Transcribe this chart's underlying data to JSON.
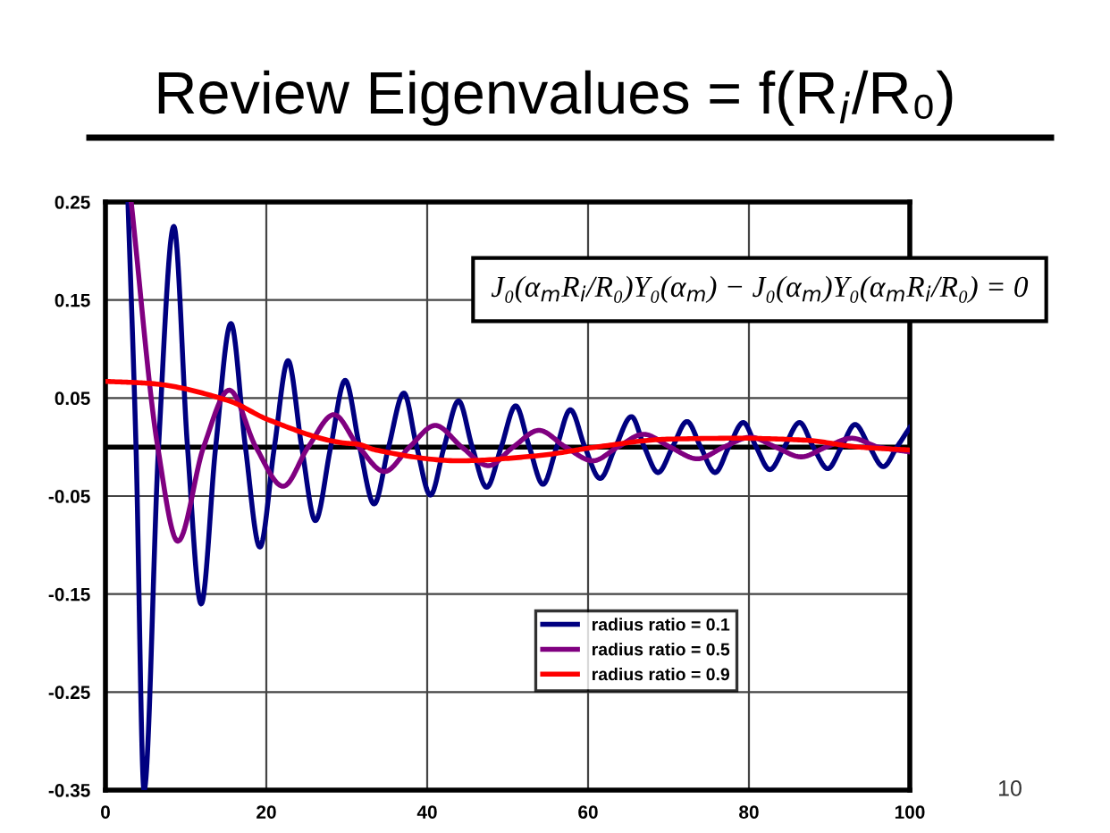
{
  "chart_data": {
    "type": "line",
    "title": "Review Eigenvalues = f(R$_{i}$/R₀)",
    "annotations": [
      "J₀(α$_{m}$R$_{i}$/R₀)Y₀(α$_{m}$) − J₀(α$_{m}$)Y₀(α$_{m}$R$_{i}$/R₀) = 0",
      "10"
    ],
    "series": [
      {
        "name": "radius ratio = 0.1",
        "color": "#000080",
        "x": [
          2.8,
          3.8,
          4.8,
          6.6,
          8.5,
          10.2,
          11.9,
          13.7,
          15.6,
          17.4,
          19.2,
          21.0,
          22.7,
          24.4,
          26.1,
          28.0,
          29.8,
          31.6,
          33.4,
          35.2,
          37.1,
          38.7,
          40.4,
          42.1,
          43.9,
          45.6,
          47.4,
          49.2,
          51.0,
          52.7,
          54.4,
          56.1,
          57.8,
          59.6,
          61.5,
          63.4,
          65.4,
          67.0,
          68.7,
          70.5,
          72.3,
          74.0,
          75.8,
          77.5,
          79.3,
          80.9,
          82.6,
          84.4,
          86.3,
          88.0,
          89.8,
          91.5,
          93.2,
          95.0,
          96.7,
          98.4,
          100
        ],
        "values": [
          0.25,
          0,
          -0.35,
          0,
          0.225,
          0,
          -0.16,
          0,
          0.126,
          0,
          -0.102,
          0,
          0.088,
          0,
          -0.075,
          0,
          0.068,
          0,
          -0.058,
          0,
          0.055,
          0,
          -0.049,
          0,
          0.047,
          0,
          -0.041,
          0,
          0.042,
          0,
          -0.038,
          0,
          0.038,
          0,
          -0.032,
          0,
          0.031,
          0,
          -0.026,
          0,
          0.026,
          0,
          -0.026,
          0,
          0.025,
          0,
          -0.023,
          0,
          0.025,
          0,
          -0.022,
          0,
          0.023,
          0,
          -0.02,
          0,
          0.02
        ]
      },
      {
        "name": "radius ratio = 0.5",
        "color": "#800080",
        "x": [
          3.2,
          6.5,
          9.0,
          12.2,
          15.4,
          18.7,
          22.1,
          25.2,
          28.4,
          31.5,
          34.7,
          37.8,
          41.0,
          44.3,
          47.6,
          50.7,
          53.9,
          57.2,
          60.6,
          63.7,
          66.9,
          70.2,
          73.6,
          76.9,
          80.2,
          83.3,
          86.5,
          89.6,
          92.8,
          96.1,
          100
        ],
        "values": [
          0.25,
          0,
          -0.096,
          0,
          0.058,
          0,
          -0.04,
          0,
          0.033,
          0,
          -0.025,
          0,
          0.022,
          0,
          -0.019,
          0,
          0.017,
          0,
          -0.014,
          0,
          0.013,
          0,
          -0.012,
          0,
          0.01,
          0,
          -0.01,
          0,
          0.009,
          0,
          -0.005
        ]
      },
      {
        "name": "radius ratio = 0.9",
        "color": "#ff0000",
        "x": [
          0,
          5.4,
          15.4,
          20.2,
          29.8,
          31.3,
          33.6,
          43.9,
          53.6,
          61.0,
          69.8,
          78.7,
          87.0,
          93.6,
          100
        ],
        "values": [
          0.067,
          0.065,
          0.047,
          0.028,
          0.004,
          0.003,
          -0.003,
          -0.014,
          -0.009,
          0.0,
          0.008,
          0.009,
          0.007,
          0.0,
          -0.003
        ]
      }
    ],
    "xlim": [
      0,
      100
    ],
    "xticks": [
      0,
      20,
      40,
      60,
      80,
      100
    ],
    "ylim": [
      -0.35,
      0.25
    ],
    "yticks": [
      0.25,
      0.15,
      0.05,
      {
        "value": -0.05,
        "label": "-0.05"
      },
      {
        "value": -0.15,
        "label": "-0.15"
      },
      {
        "value": -0.25,
        "label": "-0.25"
      },
      {
        "value": -0.35,
        "label": "-0.35"
      }
    ],
    "ref_lines": [
      {
        "axis": "y",
        "value": 0,
        "color": "#000000"
      }
    ],
    "grid": true,
    "legend": "bottom",
    "marker": "none",
    "line_style": "solid"
  }
}
